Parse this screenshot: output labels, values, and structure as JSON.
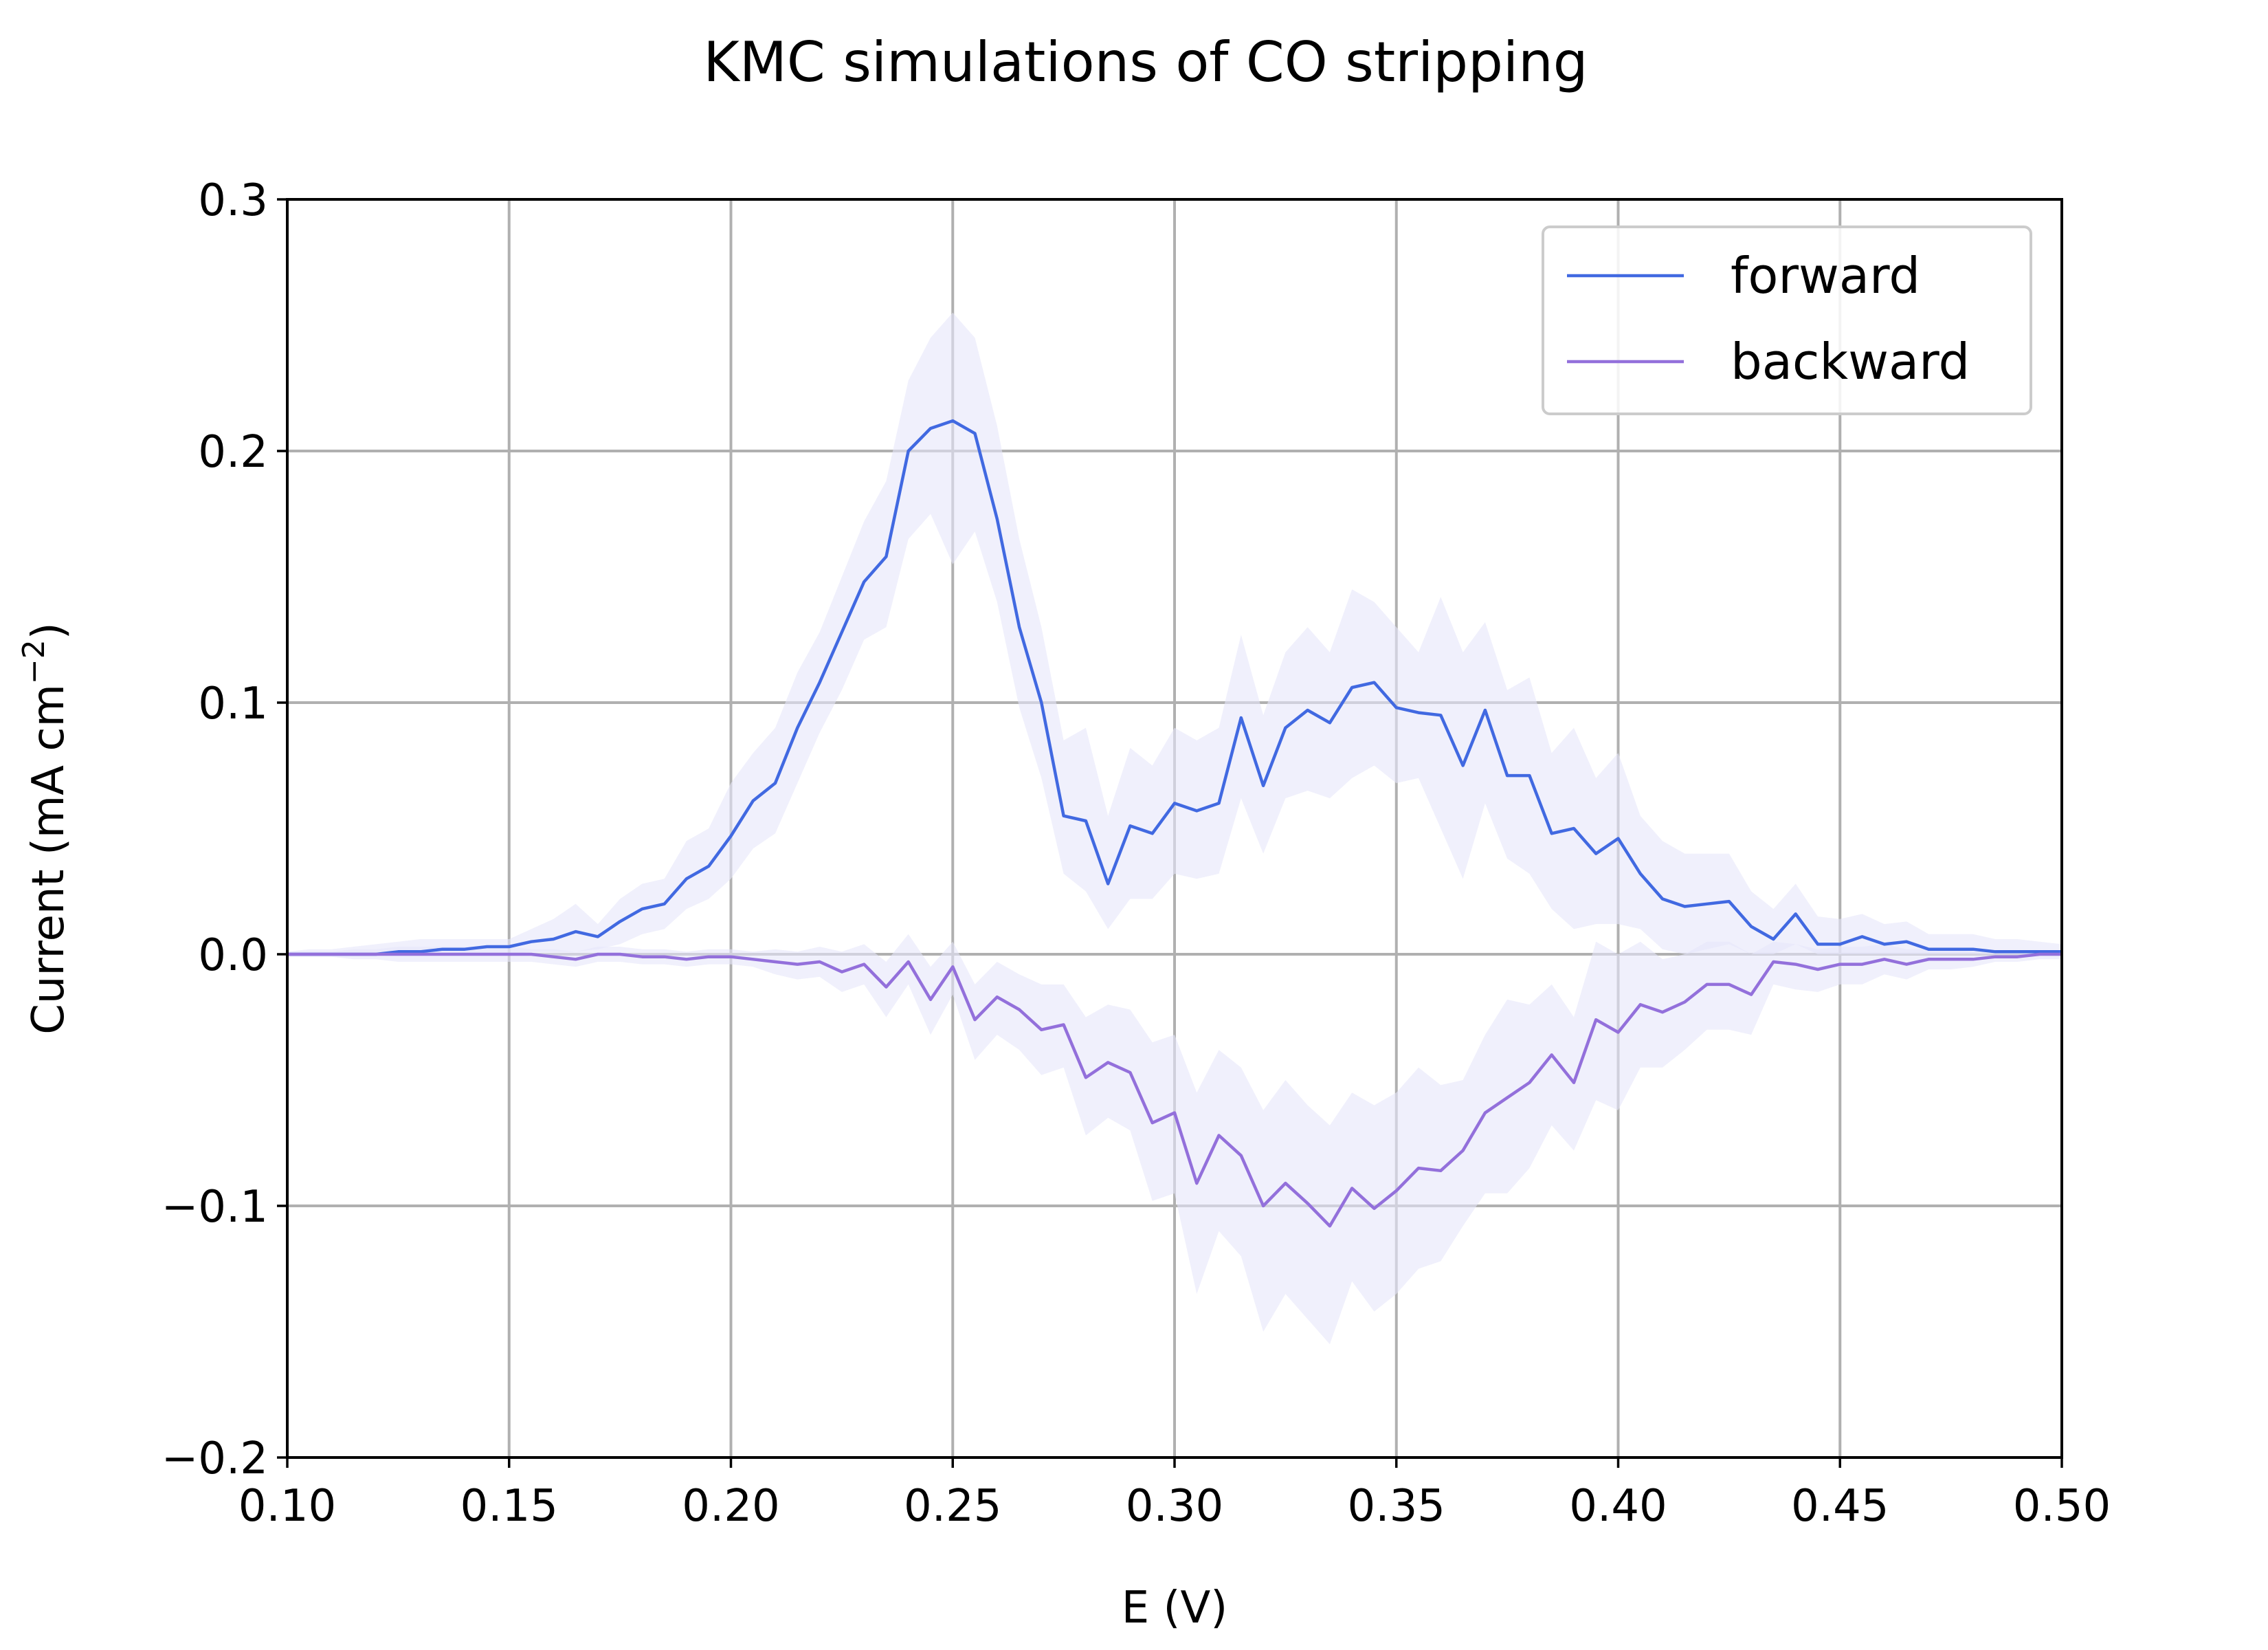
{
  "chart_data": {
    "type": "line",
    "title": "KMC simulations of CO stripping",
    "xlabel": "E (V)",
    "ylabel": "Current (mA cm",
    "ylabel_sup": "−2",
    "ylabel_close": ")",
    "xlim": [
      0.1,
      0.5
    ],
    "ylim": [
      -0.2,
      0.3
    ],
    "xticks": [
      0.1,
      0.15,
      0.2,
      0.25,
      0.3,
      0.35,
      0.4,
      0.45,
      0.5
    ],
    "xtick_labels": [
      "0.10",
      "0.15",
      "0.20",
      "0.25",
      "0.30",
      "0.35",
      "0.40",
      "0.45",
      "0.50"
    ],
    "yticks": [
      -0.2,
      -0.1,
      0.0,
      0.1,
      0.2,
      0.3
    ],
    "ytick_labels": [
      "−0.2",
      "−0.1",
      "0.0",
      "0.1",
      "0.2",
      "0.3"
    ],
    "grid": true,
    "legend_position": "top-right",
    "x": [
      0.1,
      0.105,
      0.11,
      0.115,
      0.12,
      0.125,
      0.13,
      0.135,
      0.14,
      0.145,
      0.15,
      0.155,
      0.16,
      0.165,
      0.17,
      0.175,
      0.18,
      0.185,
      0.19,
      0.195,
      0.2,
      0.205,
      0.21,
      0.215,
      0.22,
      0.225,
      0.23,
      0.235,
      0.24,
      0.245,
      0.25,
      0.255,
      0.26,
      0.265,
      0.27,
      0.275,
      0.28,
      0.285,
      0.29,
      0.295,
      0.3,
      0.305,
      0.31,
      0.315,
      0.32,
      0.325,
      0.33,
      0.335,
      0.34,
      0.345,
      0.35,
      0.355,
      0.36,
      0.365,
      0.37,
      0.375,
      0.38,
      0.385,
      0.39,
      0.395,
      0.4,
      0.405,
      0.41,
      0.415,
      0.42,
      0.425,
      0.43,
      0.435,
      0.44,
      0.445,
      0.45,
      0.455,
      0.46,
      0.465,
      0.47,
      0.475,
      0.48,
      0.485,
      0.49,
      0.495,
      0.5
    ],
    "series": [
      {
        "name": "forward",
        "color": "#4169e1",
        "values": [
          0.0,
          0.0,
          0.0,
          0.0,
          0.0,
          0.001,
          0.001,
          0.002,
          0.002,
          0.003,
          0.003,
          0.005,
          0.006,
          0.009,
          0.007,
          0.013,
          0.018,
          0.02,
          0.03,
          0.035,
          0.047,
          0.061,
          0.068,
          0.09,
          0.108,
          0.128,
          0.148,
          0.158,
          0.2,
          0.209,
          0.212,
          0.207,
          0.173,
          0.13,
          0.1,
          0.055,
          0.053,
          0.028,
          0.051,
          0.048,
          0.06,
          0.057,
          0.06,
          0.094,
          0.067,
          0.09,
          0.097,
          0.092,
          0.106,
          0.108,
          0.098,
          0.096,
          0.095,
          0.075,
          0.097,
          0.071,
          0.071,
          0.048,
          0.05,
          0.04,
          0.046,
          0.032,
          0.022,
          0.019,
          0.02,
          0.021,
          0.011,
          0.006,
          0.016,
          0.004,
          0.004,
          0.007,
          0.004,
          0.005,
          0.002,
          0.002,
          0.002,
          0.001,
          0.001,
          0.001,
          0.001
        ],
        "band_upper": [
          0.001,
          0.002,
          0.002,
          0.003,
          0.004,
          0.005,
          0.006,
          0.006,
          0.006,
          0.006,
          0.006,
          0.01,
          0.014,
          0.02,
          0.012,
          0.022,
          0.028,
          0.03,
          0.045,
          0.05,
          0.068,
          0.08,
          0.09,
          0.112,
          0.128,
          0.15,
          0.172,
          0.188,
          0.228,
          0.245,
          0.255,
          0.245,
          0.21,
          0.165,
          0.13,
          0.085,
          0.09,
          0.055,
          0.082,
          0.075,
          0.09,
          0.085,
          0.09,
          0.127,
          0.095,
          0.12,
          0.13,
          0.12,
          0.145,
          0.14,
          0.13,
          0.12,
          0.142,
          0.12,
          0.132,
          0.105,
          0.11,
          0.08,
          0.09,
          0.07,
          0.08,
          0.055,
          0.045,
          0.04,
          0.04,
          0.04,
          0.025,
          0.018,
          0.028,
          0.015,
          0.014,
          0.016,
          0.012,
          0.013,
          0.008,
          0.008,
          0.008,
          0.006,
          0.006,
          0.005,
          0.004
        ],
        "band_lower": [
          0.0,
          0.0,
          0.0,
          0.0,
          0.0,
          0.0,
          0.0,
          0.0,
          0.0,
          0.0,
          0.0,
          0.001,
          0.001,
          0.001,
          0.002,
          0.004,
          0.008,
          0.01,
          0.018,
          0.022,
          0.03,
          0.042,
          0.048,
          0.068,
          0.088,
          0.105,
          0.125,
          0.13,
          0.165,
          0.175,
          0.155,
          0.168,
          0.14,
          0.098,
          0.07,
          0.032,
          0.025,
          0.01,
          0.022,
          0.022,
          0.032,
          0.03,
          0.032,
          0.062,
          0.04,
          0.062,
          0.065,
          0.062,
          0.07,
          0.075,
          0.068,
          0.07,
          0.05,
          0.03,
          0.06,
          0.038,
          0.032,
          0.018,
          0.01,
          0.012,
          0.012,
          0.01,
          0.002,
          0.0,
          0.002,
          0.004,
          0.0,
          0.0,
          0.004,
          0.0,
          0.0,
          0.0,
          0.0,
          0.0,
          0.0,
          0.0,
          0.0,
          0.0,
          0.0,
          0.0,
          0.0
        ]
      },
      {
        "name": "backward",
        "color": "#9370db",
        "values": [
          0.0,
          0.0,
          0.0,
          0.0,
          0.0,
          0.0,
          0.0,
          0.0,
          0.0,
          0.0,
          0.0,
          0.0,
          -0.001,
          -0.002,
          0.0,
          0.0,
          -0.001,
          -0.001,
          -0.002,
          -0.001,
          -0.001,
          -0.002,
          -0.003,
          -0.004,
          -0.003,
          -0.007,
          -0.004,
          -0.013,
          -0.003,
          -0.018,
          -0.005,
          -0.026,
          -0.017,
          -0.022,
          -0.03,
          -0.028,
          -0.049,
          -0.043,
          -0.047,
          -0.067,
          -0.063,
          -0.091,
          -0.072,
          -0.08,
          -0.1,
          -0.091,
          -0.099,
          -0.108,
          -0.093,
          -0.101,
          -0.094,
          -0.085,
          -0.086,
          -0.078,
          -0.063,
          -0.057,
          -0.051,
          -0.04,
          -0.051,
          -0.026,
          -0.031,
          -0.02,
          -0.023,
          -0.019,
          -0.012,
          -0.012,
          -0.016,
          -0.003,
          -0.004,
          -0.006,
          -0.004,
          -0.004,
          -0.002,
          -0.004,
          -0.002,
          -0.002,
          -0.002,
          -0.001,
          -0.001,
          0.0,
          0.0
        ],
        "band_upper": [
          0.001,
          0.001,
          0.001,
          0.002,
          0.002,
          0.003,
          0.003,
          0.003,
          0.003,
          0.003,
          0.003,
          0.002,
          0.002,
          0.001,
          0.003,
          0.003,
          0.002,
          0.002,
          0.001,
          0.002,
          0.002,
          0.001,
          0.002,
          0.001,
          0.003,
          0.001,
          0.004,
          -0.003,
          0.008,
          -0.005,
          0.005,
          -0.012,
          -0.003,
          -0.008,
          -0.012,
          -0.012,
          -0.025,
          -0.02,
          -0.022,
          -0.035,
          -0.032,
          -0.055,
          -0.038,
          -0.045,
          -0.062,
          -0.05,
          -0.06,
          -0.068,
          -0.055,
          -0.06,
          -0.055,
          -0.045,
          -0.052,
          -0.05,
          -0.032,
          -0.018,
          -0.02,
          -0.012,
          -0.025,
          0.005,
          0.0,
          0.005,
          -0.002,
          0.0,
          0.005,
          0.005,
          0.0,
          0.005,
          0.004,
          0.002,
          0.003,
          0.003,
          0.004,
          0.002,
          0.002,
          0.002,
          0.001,
          0.001,
          0.001,
          0.001,
          0.001
        ],
        "band_lower": [
          -0.001,
          -0.001,
          -0.001,
          -0.002,
          -0.002,
          -0.003,
          -0.003,
          -0.003,
          -0.003,
          -0.003,
          -0.003,
          -0.003,
          -0.004,
          -0.005,
          -0.003,
          -0.003,
          -0.004,
          -0.004,
          -0.005,
          -0.004,
          -0.004,
          -0.005,
          -0.008,
          -0.01,
          -0.009,
          -0.015,
          -0.012,
          -0.025,
          -0.012,
          -0.032,
          -0.016,
          -0.042,
          -0.032,
          -0.038,
          -0.048,
          -0.045,
          -0.072,
          -0.065,
          -0.07,
          -0.098,
          -0.095,
          -0.135,
          -0.11,
          -0.12,
          -0.15,
          -0.135,
          -0.145,
          -0.155,
          -0.13,
          -0.142,
          -0.135,
          -0.125,
          -0.122,
          -0.108,
          -0.095,
          -0.095,
          -0.085,
          -0.068,
          -0.078,
          -0.058,
          -0.062,
          -0.045,
          -0.045,
          -0.038,
          -0.03,
          -0.03,
          -0.032,
          -0.012,
          -0.014,
          -0.015,
          -0.012,
          -0.012,
          -0.008,
          -0.01,
          -0.006,
          -0.006,
          -0.005,
          -0.003,
          -0.003,
          -0.002,
          -0.002
        ]
      }
    ],
    "band_color": "#e6e6fa"
  }
}
